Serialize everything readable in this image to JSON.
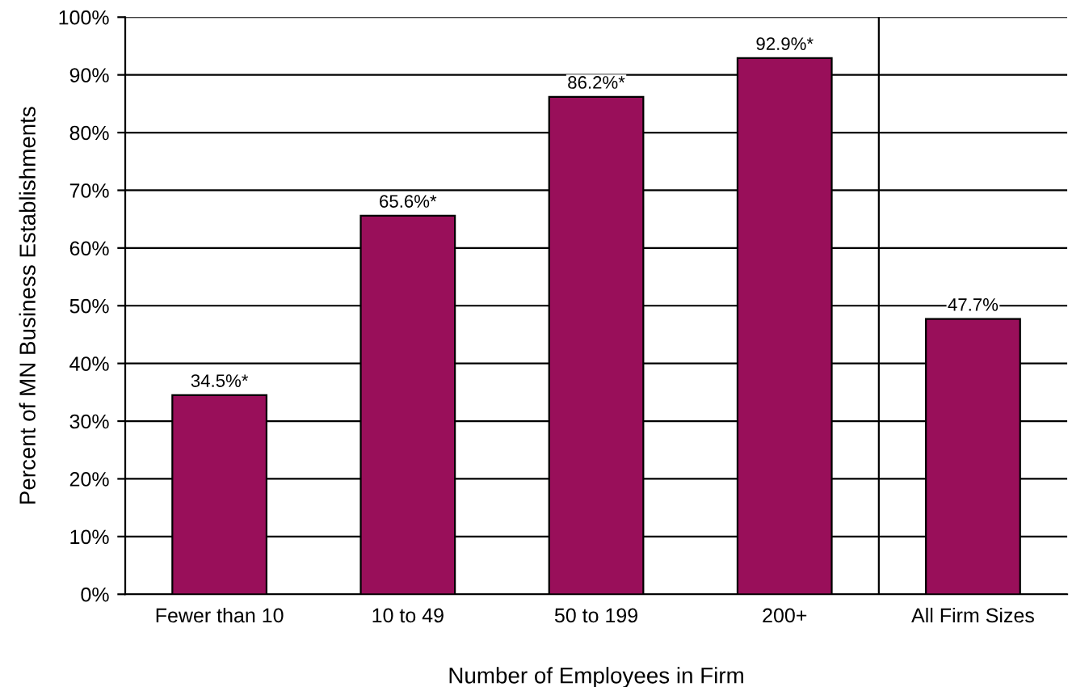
{
  "chart_data": {
    "type": "bar",
    "xlabel": "Number of Employees in Firm",
    "ylabel": "Percent of MN Business Establishments",
    "categories": [
      "Fewer than 10",
      "10 to 49",
      "50 to 199",
      "200+",
      "All Firm Sizes"
    ],
    "values": [
      34.5,
      65.6,
      86.2,
      92.9,
      47.7
    ],
    "value_labels": [
      "34.5%*",
      "65.6%*",
      "86.2%*",
      "92.9%*",
      "47.7%"
    ],
    "color": "#990f5a",
    "ylim": [
      0,
      100
    ],
    "yticks": [
      {
        "value": 0,
        "label": "0%"
      },
      {
        "value": 10,
        "label": "10%"
      },
      {
        "value": 20,
        "label": "20%"
      },
      {
        "value": 30,
        "label": "30%"
      },
      {
        "value": 40,
        "label": "40%"
      },
      {
        "value": 50,
        "label": "50%"
      },
      {
        "value": 60,
        "label": "60%"
      },
      {
        "value": 70,
        "label": "70%"
      },
      {
        "value": 80,
        "label": "80%"
      },
      {
        "value": 90,
        "label": "90%"
      },
      {
        "value": 100,
        "label": "100%"
      }
    ],
    "grid": "y"
  }
}
